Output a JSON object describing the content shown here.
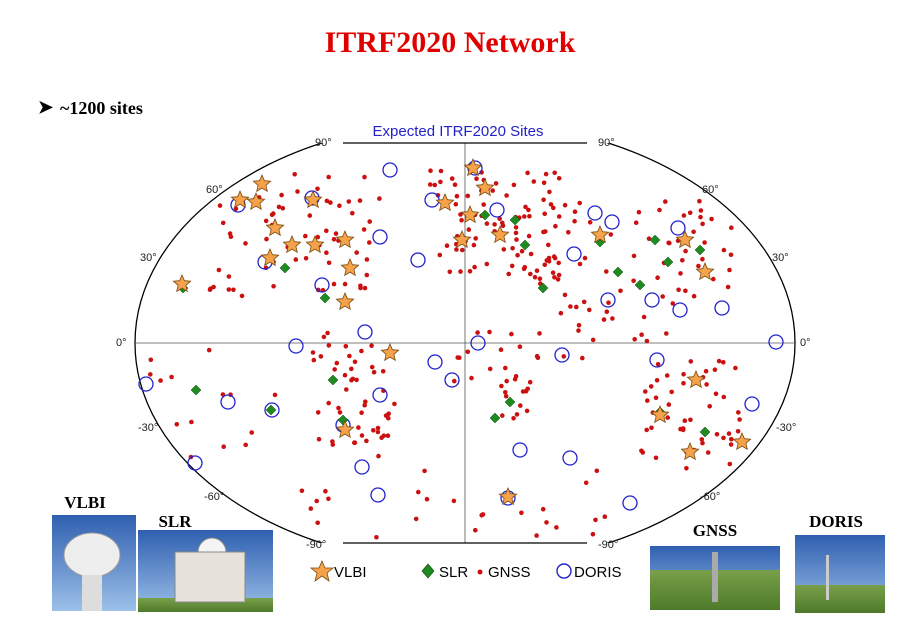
{
  "header": {
    "title": "ITRF2020 Network",
    "bullet": "~1200 sites"
  },
  "map": {
    "title": "Expected ITRF2020 Sites",
    "lat_left": [
      "90°",
      "60°",
      "30°",
      "0°",
      "-30°",
      "-60°",
      "-90°"
    ],
    "lat_right": [
      "90°",
      "60°",
      "30°",
      "0°",
      "-30°",
      "-60°",
      "-90°"
    ],
    "legend": [
      "VLBI",
      "SLR",
      "GNSS",
      "DORIS"
    ]
  },
  "photos": [
    "VLBI",
    "SLR",
    "GNSS",
    "DORIS"
  ]
}
